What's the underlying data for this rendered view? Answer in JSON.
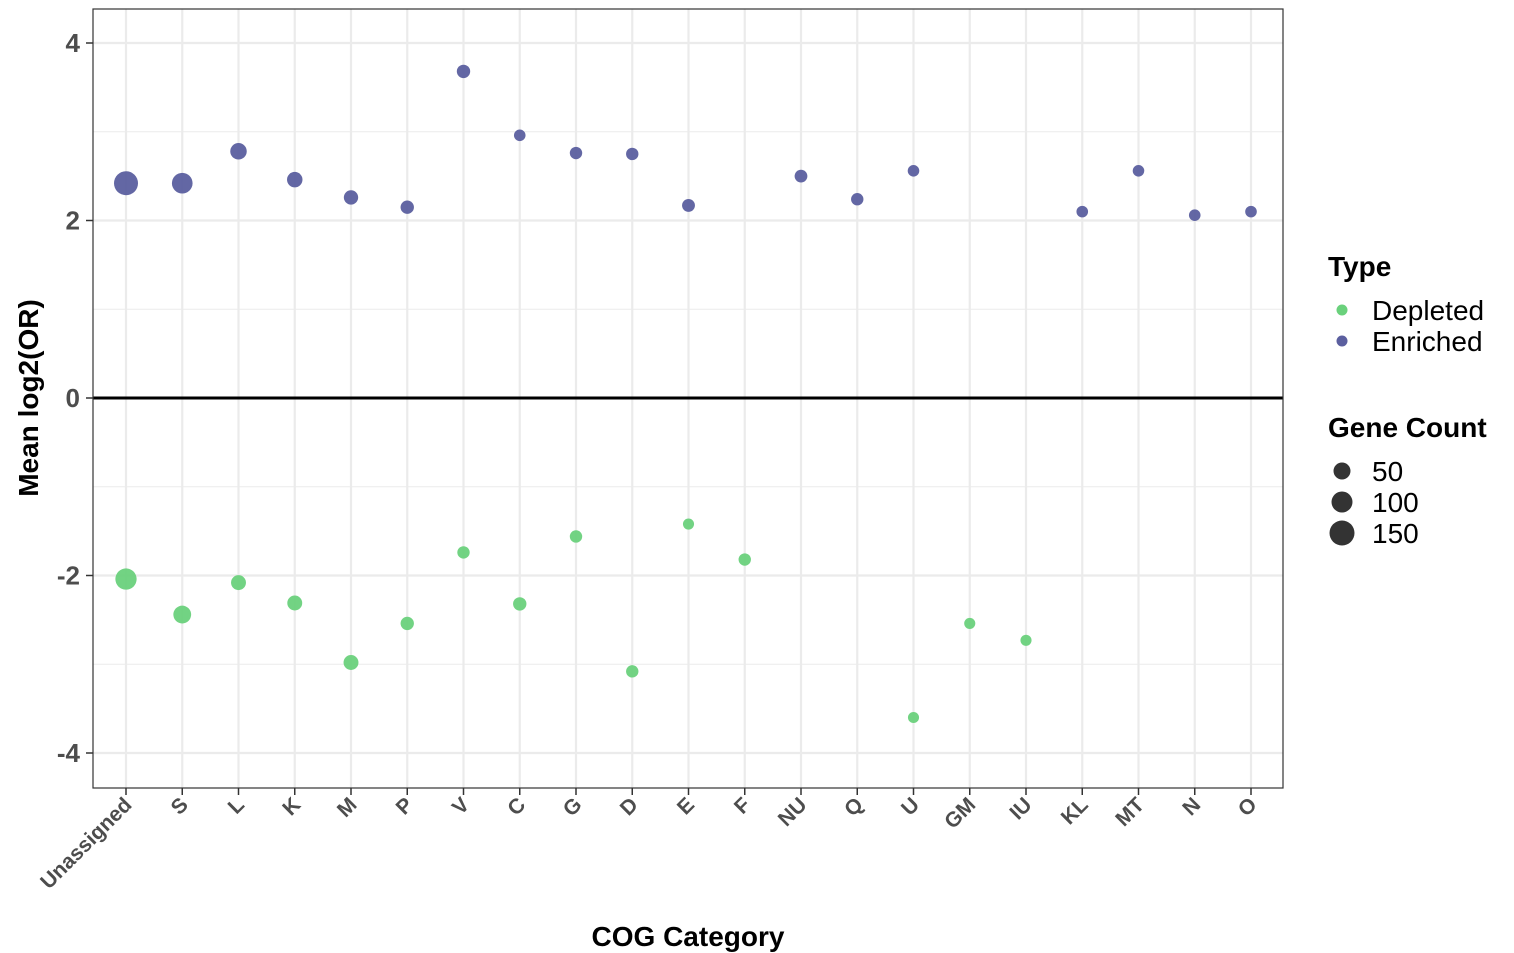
{
  "chart_data": {
    "type": "scatter",
    "xlabel": "COG Category",
    "ylabel": "Mean log2(OR)",
    "categories": [
      "Unassigned",
      "S",
      "L",
      "K",
      "M",
      "P",
      "V",
      "C",
      "G",
      "D",
      "E",
      "F",
      "NU",
      "Q",
      "U",
      "GM",
      "IU",
      "KL",
      "MT",
      "N",
      "O"
    ],
    "ylim": [
      -4.4,
      4.4
    ],
    "yticks": [
      -4,
      -2,
      0,
      2,
      4
    ],
    "grid": true,
    "reference_line": 0,
    "legend_position": "right",
    "color_legend": {
      "title": "Type",
      "entries": [
        {
          "label": "Depleted",
          "color": "#6ad17c"
        },
        {
          "label": "Enriched",
          "color": "#5b5f9f"
        }
      ]
    },
    "size_legend": {
      "title": "Gene Count",
      "entries": [
        {
          "label": "50",
          "value": 50
        },
        {
          "label": "100",
          "value": 100
        },
        {
          "label": "150",
          "value": 150
        }
      ]
    },
    "series": [
      {
        "name": "Enriched",
        "color": "#5b5f9f",
        "points": [
          {
            "x": "Unassigned",
            "y": 2.42,
            "count": 160
          },
          {
            "x": "S",
            "y": 2.42,
            "count": 100
          },
          {
            "x": "L",
            "y": 2.78,
            "count": 45
          },
          {
            "x": "K",
            "y": 2.46,
            "count": 35
          },
          {
            "x": "M",
            "y": 2.26,
            "count": 25
          },
          {
            "x": "P",
            "y": 2.15,
            "count": 18
          },
          {
            "x": "V",
            "y": 3.68,
            "count": 18
          },
          {
            "x": "C",
            "y": 2.96,
            "count": 8
          },
          {
            "x": "G",
            "y": 2.76,
            "count": 12
          },
          {
            "x": "D",
            "y": 2.75,
            "count": 12
          },
          {
            "x": "E",
            "y": 2.17,
            "count": 15
          },
          {
            "x": "NU",
            "y": 2.5,
            "count": 14
          },
          {
            "x": "Q",
            "y": 2.24,
            "count": 12
          },
          {
            "x": "U",
            "y": 2.56,
            "count": 8
          },
          {
            "x": "KL",
            "y": 2.1,
            "count": 8
          },
          {
            "x": "MT",
            "y": 2.56,
            "count": 8
          },
          {
            "x": "N",
            "y": 2.06,
            "count": 8
          },
          {
            "x": "O",
            "y": 2.1,
            "count": 8
          }
        ]
      },
      {
        "name": "Depleted",
        "color": "#6ad17c",
        "points": [
          {
            "x": "Unassigned",
            "y": -2.04,
            "count": 110
          },
          {
            "x": "S",
            "y": -2.44,
            "count": 60
          },
          {
            "x": "L",
            "y": -2.08,
            "count": 30
          },
          {
            "x": "K",
            "y": -2.31,
            "count": 30
          },
          {
            "x": "M",
            "y": -2.98,
            "count": 30
          },
          {
            "x": "P",
            "y": -2.54,
            "count": 18
          },
          {
            "x": "V",
            "y": -1.74,
            "count": 12
          },
          {
            "x": "C",
            "y": -2.32,
            "count": 18
          },
          {
            "x": "G",
            "y": -1.56,
            "count": 12
          },
          {
            "x": "D",
            "y": -3.08,
            "count": 12
          },
          {
            "x": "E",
            "y": -1.42,
            "count": 6
          },
          {
            "x": "F",
            "y": -1.82,
            "count": 12
          },
          {
            "x": "U",
            "y": -3.6,
            "count": 6
          },
          {
            "x": "GM",
            "y": -2.54,
            "count": 6
          },
          {
            "x": "IU",
            "y": -2.73,
            "count": 6
          }
        ]
      }
    ]
  }
}
